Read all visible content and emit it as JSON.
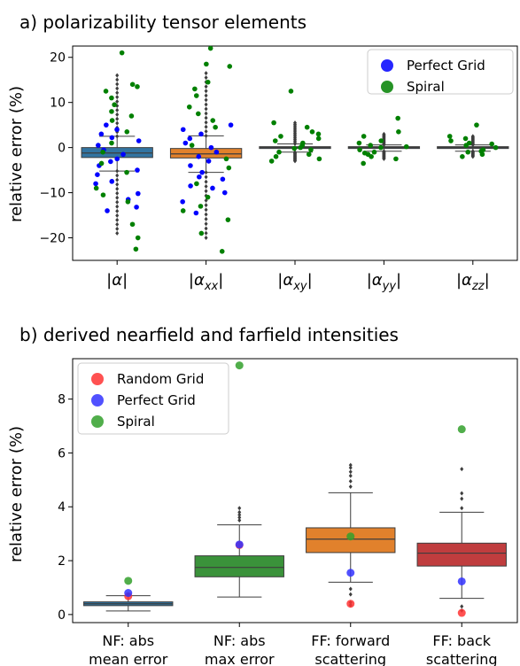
{
  "chart_data": [
    {
      "type": "box",
      "title": "a) polarizability tensor elements",
      "ylabel": "relative error (%)",
      "xlabel": "",
      "ylim": [
        -25,
        22.5
      ],
      "yticks": [
        -20,
        -10,
        0,
        10,
        20
      ],
      "ytick_labels": [
        "−20",
        "−10",
        "0",
        "10",
        "20"
      ],
      "grid": false,
      "legend_position": "top-right",
      "categories": [
        {
          "base": "α",
          "sub": ""
        },
        {
          "base": "α",
          "sub": "xx"
        },
        {
          "base": "α",
          "sub": "xy"
        },
        {
          "base": "α",
          "sub": "yy"
        },
        {
          "base": "α",
          "sub": "zz"
        }
      ],
      "boxes": [
        {
          "category": "|α|",
          "color": "#3274a1",
          "q1": -2.2,
          "median": -1.2,
          "q3": 0.0,
          "whisker_low": -5.2,
          "whisker_high": 2.5,
          "outliers_low": -19.0,
          "outliers_high": 16.0
        },
        {
          "category": "|αxx|",
          "color": "#e1812c",
          "q1": -2.3,
          "median": -1.4,
          "q3": -0.2,
          "whisker_low": -5.5,
          "whisker_high": 2.6,
          "outliers_low": -20.0,
          "outliers_high": 16.5
        },
        {
          "category": "|αxy|",
          "color": "#3274a1",
          "q1": -0.2,
          "median": 0.0,
          "q3": 0.2,
          "whisker_low": -1.0,
          "whisker_high": 0.8,
          "outliers_low": -3.0,
          "outliers_high": 5.5
        },
        {
          "category": "|αyy|",
          "color": "#3274a1",
          "q1": -0.2,
          "median": 0.0,
          "q3": 0.2,
          "whisker_low": -0.8,
          "whisker_high": 0.6,
          "outliers_low": -2.5,
          "outliers_high": 3.0
        },
        {
          "category": "|αzz|",
          "color": "#3274a1",
          "q1": -0.2,
          "median": 0.0,
          "q3": 0.2,
          "whisker_low": -0.8,
          "whisker_high": 0.6,
          "outliers_low": -2.0,
          "outliers_high": 2.5
        }
      ],
      "series": [
        {
          "name": "Perfect Grid",
          "color": "#0000ff",
          "points": [
            [
              0,
              -13.2
            ],
            [
              0,
              -10.2
            ],
            [
              0,
              -8.0
            ],
            [
              0,
              -7.5
            ],
            [
              0,
              -5.0
            ],
            [
              0,
              -4.0
            ],
            [
              0,
              -3.1
            ],
            [
              0,
              -2.5
            ],
            [
              0,
              -1.5
            ],
            [
              0,
              -0.5
            ],
            [
              0,
              0.5
            ],
            [
              0,
              1.5
            ],
            [
              0,
              2.2
            ],
            [
              0,
              3.0
            ],
            [
              0,
              4.0
            ],
            [
              0,
              5.0
            ],
            [
              0,
              -6.0
            ],
            [
              0,
              -11.5
            ],
            [
              0,
              -14.0
            ],
            [
              1,
              -14.5
            ],
            [
              1,
              -12.0
            ],
            [
              1,
              -10.0
            ],
            [
              1,
              -8.5
            ],
            [
              1,
              -7.0
            ],
            [
              1,
              -5.5
            ],
            [
              1,
              -4.0
            ],
            [
              1,
              -3.0
            ],
            [
              1,
              -2.0
            ],
            [
              1,
              -1.0
            ],
            [
              1,
              0.0
            ],
            [
              1,
              1.0
            ],
            [
              1,
              2.0
            ],
            [
              1,
              3.0
            ],
            [
              1,
              4.0
            ],
            [
              1,
              5.0
            ],
            [
              1,
              -6.5
            ],
            [
              1,
              -9.0
            ]
          ]
        },
        {
          "name": "Spiral",
          "color": "#008000",
          "points": [
            [
              0,
              21.0
            ],
            [
              0,
              13.5
            ],
            [
              0,
              12.5
            ],
            [
              0,
              11.0
            ],
            [
              0,
              9.5
            ],
            [
              0,
              8.0
            ],
            [
              0,
              7.0
            ],
            [
              0,
              6.0
            ],
            [
              0,
              1.0
            ],
            [
              0,
              -1.0
            ],
            [
              0,
              -3.5
            ],
            [
              0,
              -5.5
            ],
            [
              0,
              -9.0
            ],
            [
              0,
              -10.5
            ],
            [
              0,
              -12.0
            ],
            [
              0,
              -17.0
            ],
            [
              0,
              -20.0
            ],
            [
              0,
              -22.5
            ],
            [
              0,
              14.0
            ],
            [
              0,
              3.5
            ],
            [
              1,
              22.0
            ],
            [
              1,
              18.5
            ],
            [
              1,
              18.0
            ],
            [
              1,
              13.0
            ],
            [
              1,
              11.5
            ],
            [
              1,
              9.0
            ],
            [
              1,
              7.5
            ],
            [
              1,
              6.0
            ],
            [
              1,
              4.5
            ],
            [
              1,
              0.5
            ],
            [
              1,
              -2.5
            ],
            [
              1,
              -4.5
            ],
            [
              1,
              -8.0
            ],
            [
              1,
              -11.0
            ],
            [
              1,
              -13.0
            ],
            [
              1,
              -14.0
            ],
            [
              1,
              -16.0
            ],
            [
              1,
              -19.0
            ],
            [
              1,
              -23.0
            ],
            [
              1,
              14.5
            ],
            [
              2,
              12.5
            ],
            [
              2,
              5.5
            ],
            [
              2,
              4.5
            ],
            [
              2,
              3.5
            ],
            [
              2,
              2.5
            ],
            [
              2,
              2.0
            ],
            [
              2,
              1.5
            ],
            [
              2,
              1.0
            ],
            [
              2,
              0.5
            ],
            [
              2,
              0.0
            ],
            [
              2,
              -0.5
            ],
            [
              2,
              -1.0
            ],
            [
              2,
              -1.5
            ],
            [
              2,
              -2.0
            ],
            [
              2,
              -2.5
            ],
            [
              2,
              -3.0
            ],
            [
              2,
              3.0
            ],
            [
              2,
              -0.2
            ],
            [
              3,
              6.5
            ],
            [
              3,
              3.5
            ],
            [
              3,
              2.5
            ],
            [
              3,
              1.5
            ],
            [
              3,
              1.0
            ],
            [
              3,
              0.5
            ],
            [
              3,
              0.0
            ],
            [
              3,
              -0.5
            ],
            [
              3,
              -1.0
            ],
            [
              3,
              -1.5
            ],
            [
              3,
              -2.0
            ],
            [
              3,
              -2.5
            ],
            [
              3,
              -3.5
            ],
            [
              3,
              -1.2
            ],
            [
              3,
              0.2
            ],
            [
              4,
              5.0
            ],
            [
              4,
              2.5
            ],
            [
              4,
              2.0
            ],
            [
              4,
              1.5
            ],
            [
              4,
              1.0
            ],
            [
              4,
              0.5
            ],
            [
              4,
              0.0
            ],
            [
              4,
              -0.5
            ],
            [
              4,
              -1.0
            ],
            [
              4,
              -1.5
            ],
            [
              4,
              -2.0
            ],
            [
              4,
              0.8
            ],
            [
              4,
              -0.8
            ]
          ]
        }
      ]
    },
    {
      "type": "box",
      "title": "b) derived nearfield and farfield intensities",
      "ylabel": "relative error (%)",
      "xlabel": "",
      "ylim": [
        -0.3,
        9.5
      ],
      "yticks": [
        0,
        2,
        4,
        6,
        8
      ],
      "ytick_labels": [
        "0",
        "2",
        "4",
        "6",
        "8"
      ],
      "grid": false,
      "legend_position": "top-left",
      "categories": [
        [
          "NF: abs",
          "mean error"
        ],
        [
          "NF: abs",
          "max error"
        ],
        [
          "FF: forward",
          "scattering"
        ],
        [
          "FF: back",
          "scattering"
        ]
      ],
      "boxes": [
        {
          "color": "#3274a1",
          "q1": 0.33,
          "median": 0.4,
          "q3": 0.47,
          "whisker_low": 0.13,
          "whisker_high": 0.7,
          "outliers_high": [
            0.75
          ]
        },
        {
          "color": "#3a923a",
          "q1": 1.4,
          "median": 1.75,
          "q3": 2.18,
          "whisker_low": 0.65,
          "whisker_high": 3.33,
          "outliers_high": [
            3.5,
            3.6,
            3.7,
            3.8,
            3.95
          ]
        },
        {
          "color": "#e1812c",
          "q1": 2.3,
          "median": 2.8,
          "q3": 3.22,
          "whisker_low": 1.2,
          "whisker_high": 4.52,
          "outliers_low": [
            0.95,
            0.75,
            0.45,
            0.35
          ],
          "outliers_high": [
            4.75,
            4.95,
            5.15,
            5.3,
            5.45,
            5.55
          ]
        },
        {
          "color": "#c03d3e",
          "q1": 1.8,
          "median": 2.28,
          "q3": 2.65,
          "whisker_low": 0.6,
          "whisker_high": 3.8,
          "outliers_low": [
            0.3,
            0.15
          ],
          "outliers_high": [
            3.95,
            4.3,
            4.5,
            5.4
          ]
        }
      ],
      "series": [
        {
          "name": "Random Grid",
          "color": "#ff3333",
          "points": [
            [
              0,
              0.68
            ],
            [
              1,
              2.58
            ],
            [
              2,
              0.4
            ],
            [
              3,
              0.06
            ]
          ]
        },
        {
          "name": "Perfect Grid",
          "color": "#3333ff",
          "points": [
            [
              0,
              0.8
            ],
            [
              1,
              2.6
            ],
            [
              2,
              1.55
            ],
            [
              3,
              1.23
            ]
          ]
        },
        {
          "name": "Spiral",
          "color": "#33a02c",
          "points": [
            [
              0,
              1.25
            ],
            [
              1,
              9.25
            ],
            [
              2,
              2.9
            ],
            [
              3,
              6.88
            ]
          ]
        }
      ]
    }
  ]
}
